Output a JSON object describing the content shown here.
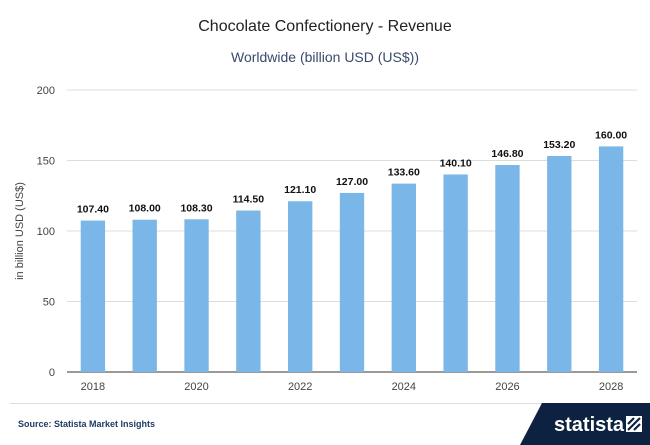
{
  "chart_data": {
    "type": "bar",
    "title": "Chocolate Confectionery - Revenue",
    "subtitle": "Worldwide (billion USD (US$))",
    "ylabel": "in billion USD (US$)",
    "xlabel": "",
    "categories": [
      "2018",
      "2019",
      "2020",
      "2021",
      "2022",
      "2023",
      "2024",
      "2025",
      "2026",
      "2027",
      "2028"
    ],
    "x_tick_labels": [
      "2018",
      "2020",
      "2022",
      "2024",
      "2026",
      "2028"
    ],
    "values": [
      107.4,
      108.0,
      108.3,
      114.5,
      121.1,
      127.0,
      133.6,
      140.1,
      146.8,
      153.2,
      160.0
    ],
    "value_labels": [
      "107.40",
      "108.00",
      "108.30",
      "114.50",
      "121.10",
      "127.00",
      "133.60",
      "140.10",
      "146.80",
      "153.20",
      "160.00"
    ],
    "ylim": [
      0,
      200
    ],
    "y_ticks": [
      0,
      50,
      100,
      150,
      200
    ],
    "grid": true,
    "colors": {
      "bar": "#7ab7e8",
      "grid": "#dcdcdc",
      "axis": "#333333"
    }
  },
  "footer": {
    "source": "Source: Statista Market Insights",
    "brand": "statista"
  }
}
